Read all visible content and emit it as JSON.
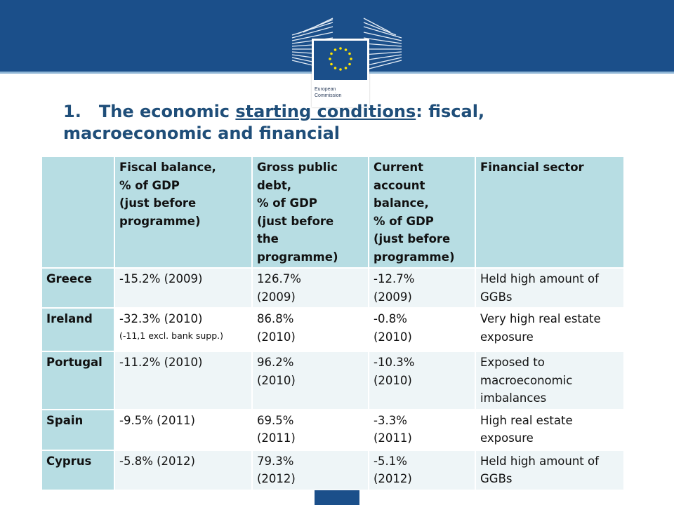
{
  "colors": {
    "banner": "#1b4f8a",
    "title": "#1f4e79",
    "header_cell": "#b7dde3",
    "alt_row": "#eef5f7",
    "star": "#ffe600"
  },
  "logo": {
    "icon": "berlaymont-building-eu-flag-icon",
    "line1": "European",
    "line2": "Commission"
  },
  "title": {
    "number": "1.",
    "pre": "The economic ",
    "underlined": "starting conditions",
    "post": ": fiscal,",
    "line2": "macroeconomic and financial"
  },
  "table": {
    "headers": {
      "h0": "",
      "h1": [
        "Fiscal balance,",
        "% of GDP",
        "(just before",
        "programme)"
      ],
      "h2": [
        "Gross public",
        "debt,",
        "% of GDP",
        "(just before",
        "the",
        "programme)"
      ],
      "h3": [
        "Current",
        "account",
        "balance,",
        "% of GDP",
        "(just before",
        "programme)"
      ],
      "h4": [
        "Financial sector"
      ]
    },
    "rows": [
      {
        "country": "Greece",
        "fiscal": "-15.2% (2009)",
        "fiscal_note": "",
        "debt": [
          "126.7%",
          "(2009)"
        ],
        "current": [
          "-12.7%",
          "(2009)"
        ],
        "financial": [
          "Held high amount of",
          "GGBs"
        ]
      },
      {
        "country": "Ireland",
        "fiscal": "-32.3% (2010)",
        "fiscal_note": "(-11,1 excl. bank  supp.)",
        "debt": [
          "86.8%",
          "(2010)"
        ],
        "current": [
          "-0.8%",
          "(2010)"
        ],
        "financial": [
          "Very high real estate",
          "exposure"
        ]
      },
      {
        "country": "Portugal",
        "fiscal": "-11.2% (2010)",
        "fiscal_note": "",
        "debt": [
          "96.2%",
          "(2010)"
        ],
        "current": [
          "-10.3%",
          "(2010)"
        ],
        "financial": [
          "Exposed to",
          "macroeconomic",
          "imbalances"
        ]
      },
      {
        "country": "Spain",
        "fiscal": "-9.5% (2011)",
        "fiscal_note": "",
        "debt": [
          "69.5%",
          "(2011)"
        ],
        "current": [
          "-3.3%",
          "(2011)"
        ],
        "financial": [
          "High real estate",
          "exposure"
        ]
      },
      {
        "country": "Cyprus",
        "fiscal": "-5.8% (2012)",
        "fiscal_note": "",
        "debt": [
          "79.3%",
          "(2012)"
        ],
        "current": [
          "-5.1%",
          "(2012)"
        ],
        "financial": [
          "Held high amount of",
          "GGBs"
        ]
      }
    ]
  }
}
